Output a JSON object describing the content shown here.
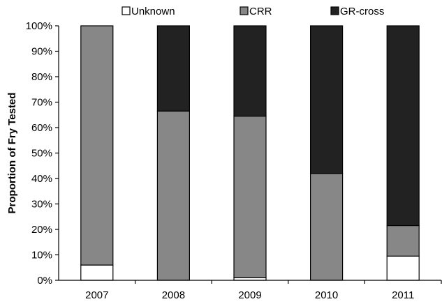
{
  "chart_data": {
    "type": "bar",
    "stacked": true,
    "title": "",
    "xlabel": "",
    "ylabel": "Proportion of Fry Tested",
    "ylim": [
      0,
      100
    ],
    "yticks": [
      "0%",
      "10%",
      "20%",
      "30%",
      "40%",
      "50%",
      "60%",
      "70%",
      "80%",
      "90%",
      "100%"
    ],
    "categories": [
      "2007",
      "2008",
      "2009",
      "2010",
      "2011"
    ],
    "series": [
      {
        "name": "Unknown",
        "color": "#ffffff",
        "values": [
          6,
          0,
          1,
          0,
          9.5
        ]
      },
      {
        "name": "CRR",
        "color": "#878787",
        "values": [
          94,
          66.5,
          63.5,
          42,
          12
        ]
      },
      {
        "name": "GR-cross",
        "color": "#222222",
        "values": [
          0,
          33.5,
          35.5,
          58,
          78.5
        ]
      }
    ],
    "legend_position": "top",
    "grid": false
  }
}
